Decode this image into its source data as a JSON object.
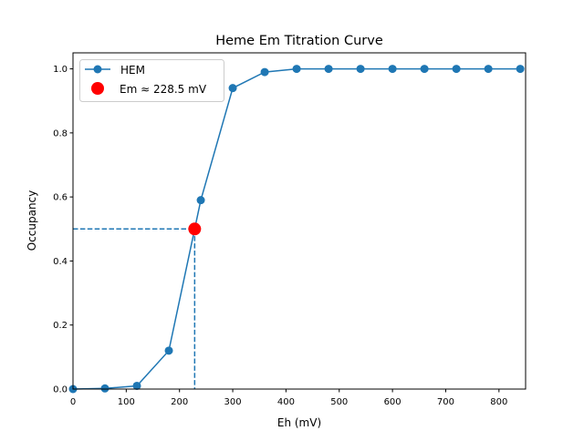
{
  "chart_data": {
    "type": "line",
    "title": "Heme Em Titration Curve",
    "xlabel": "Eh (mV)",
    "ylabel": "Occupancy",
    "xlim": [
      0,
      850
    ],
    "ylim": [
      0,
      1.05
    ],
    "xticks": [
      0,
      100,
      200,
      300,
      400,
      500,
      600,
      700,
      800
    ],
    "yticks": [
      0.0,
      0.2,
      0.4,
      0.6,
      0.8,
      1.0
    ],
    "ytick_labels": [
      "0.0",
      "0.2",
      "0.4",
      "0.6",
      "0.8",
      "1.0"
    ],
    "grid": false,
    "legend_position": "upper-left",
    "series": [
      {
        "name": "HEM",
        "color": "#1f77b4",
        "marker": "circle",
        "x": [
          0,
          60,
          120,
          180,
          240,
          300,
          360,
          420,
          480,
          540,
          600,
          660,
          720,
          780,
          840
        ],
        "y": [
          0.0,
          0.002,
          0.01,
          0.12,
          0.59,
          0.94,
          0.99,
          1.0,
          1.0,
          1.0,
          1.0,
          1.0,
          1.0,
          1.0,
          1.0
        ]
      }
    ],
    "midpoint": {
      "name": "Em ≈ 228.5 mV",
      "color": "#ff0000",
      "x": 228.5,
      "y": 0.5
    },
    "guide_lines": {
      "style": "dashed",
      "color": "#1f77b4"
    }
  }
}
